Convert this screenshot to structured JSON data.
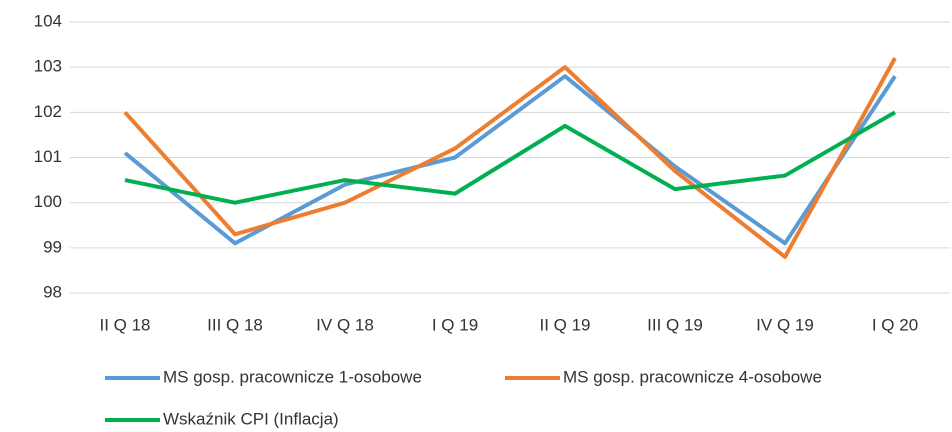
{
  "chart_data": {
    "type": "line",
    "categories": [
      "II Q 18",
      "III Q 18",
      "IV Q 18",
      "I Q 19",
      "II Q 19",
      "III Q 19",
      "IV Q 19",
      "I Q 20"
    ],
    "series": [
      {
        "name": "MS gosp. pracownicze 1-osobowe",
        "color": "#5b9bd5",
        "values": [
          101.1,
          99.1,
          100.4,
          101.0,
          102.8,
          100.8,
          99.1,
          102.8
        ]
      },
      {
        "name": "MS gosp. pracownicze 4-osobowe",
        "color": "#ed7d31",
        "values": [
          102.0,
          99.3,
          100.0,
          101.2,
          103.0,
          100.7,
          98.8,
          103.2
        ]
      },
      {
        "name": "Wskaźnik CPI (Inflacja)",
        "color": "#00b050",
        "values": [
          100.5,
          100.0,
          100.5,
          100.2,
          101.7,
          100.3,
          100.6,
          102.0
        ]
      }
    ],
    "ylim": [
      98,
      104
    ],
    "yticks": [
      98,
      99,
      100,
      101,
      102,
      103,
      104
    ],
    "grid": true
  }
}
